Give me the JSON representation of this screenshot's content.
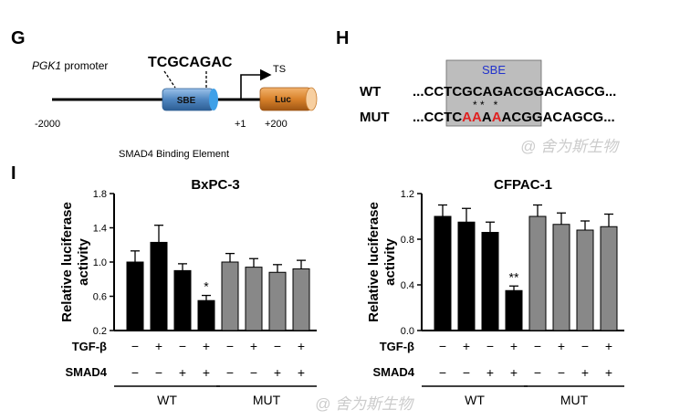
{
  "panel_g": {
    "label": "G",
    "promoter_gene": "PGK1",
    "promoter_suffix": " promoter",
    "motif": "TCGCAGAC",
    "sbe_box": "SBE",
    "luc_box": "Luc",
    "ts_label": "TS",
    "pos_start": "-2000",
    "pos_tss": "+1",
    "pos_end": "+200",
    "caption": "SMAD4 Binding Element",
    "colors": {
      "sbe": "#5b8fc4",
      "luc": "#d9822b"
    }
  },
  "panel_h": {
    "label": "H",
    "sbe_label": "SBE",
    "wt_label": "WT",
    "mut_label": "MUT",
    "wt_seq": [
      {
        "t": "...CC",
        "c": "#000000"
      },
      {
        "t": "TCGCAGAC",
        "c": "#000000"
      },
      {
        "t": "GGACAGCG...",
        "c": "#000000"
      }
    ],
    "mut_seq": [
      {
        "t": "...CC",
        "c": "#000000"
      },
      {
        "t": "TC",
        "c": "#000000"
      },
      {
        "t": "AA",
        "c": "#e02020"
      },
      {
        "t": "A",
        "c": "#000000"
      },
      {
        "t": "A",
        "c": "#e02020"
      },
      {
        "t": "AC",
        "c": "#000000"
      },
      {
        "t": "GGACAGCG...",
        "c": "#000000"
      }
    ],
    "mutation_marks": "* *   *",
    "colors": {
      "sbe_text": "#2233cc",
      "mutated": "#e02020",
      "box": "#bdbdbd"
    }
  },
  "panel_i": {
    "label": "I",
    "ylabel_line1": "Relative luciferase",
    "ylabel_line2": "activity",
    "row_labels": {
      "tgf": "TGF-β",
      "smad4": "SMAD4"
    },
    "tgf_signs": [
      "−",
      "+",
      "−",
      "+",
      "−",
      "+",
      "−",
      "+"
    ],
    "smad4_signs": [
      "−",
      "−",
      "+",
      "+",
      "−",
      "−",
      "+",
      "+"
    ],
    "group_labels": [
      "WT",
      "MUT"
    ],
    "colors": {
      "wt_bar": "#000000",
      "mut_bar": "#888888"
    }
  },
  "chart_data": [
    {
      "type": "bar",
      "title": "BxPC-3",
      "ylabel": "Relative luciferase activity",
      "ylim": [
        0.2,
        1.8
      ],
      "yticks": [
        "0.2",
        "0.6",
        "1.0",
        "1.4",
        "1.8"
      ],
      "values": [
        1.0,
        1.23,
        0.9,
        0.55,
        1.0,
        0.94,
        0.88,
        0.92
      ],
      "errors": [
        0.13,
        0.2,
        0.08,
        0.06,
        0.1,
        0.1,
        0.09,
        0.1
      ],
      "colors": [
        "#000000",
        "#000000",
        "#000000",
        "#000000",
        "#888888",
        "#888888",
        "#888888",
        "#888888"
      ],
      "annotations": [
        {
          "bar": 3,
          "text": "*"
        }
      ]
    },
    {
      "type": "bar",
      "title": "CFPAC-1",
      "ylabel": "Relative luciferase activity",
      "ylim": [
        0.0,
        1.2
      ],
      "yticks": [
        "0.0",
        "0.4",
        "0.8",
        "1.2"
      ],
      "values": [
        1.0,
        0.95,
        0.86,
        0.35,
        1.0,
        0.93,
        0.88,
        0.91
      ],
      "errors": [
        0.1,
        0.12,
        0.09,
        0.04,
        0.1,
        0.1,
        0.08,
        0.11
      ],
      "colors": [
        "#000000",
        "#000000",
        "#000000",
        "#000000",
        "#888888",
        "#888888",
        "#888888",
        "#888888"
      ],
      "annotations": [
        {
          "bar": 3,
          "text": "**"
        }
      ]
    }
  ]
}
